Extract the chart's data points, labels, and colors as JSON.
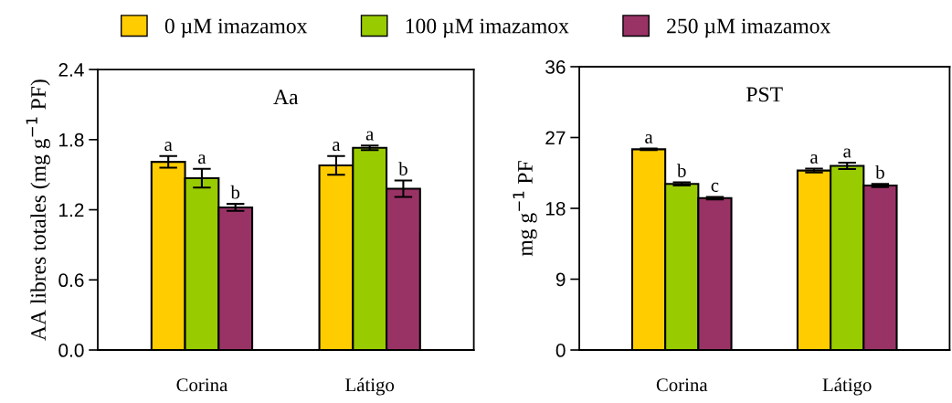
{
  "chart_data": [
    {
      "type": "bar",
      "title": "Aa",
      "ylabel": "AA libres totales (mg g$^{−1}$ PF)",
      "categories": [
        "Corina",
        "Látigo"
      ],
      "ylim": [
        0,
        2.4
      ],
      "yticks": [
        {
          "value": 0,
          "label": "0.0"
        },
        0.6,
        1.2,
        1.8,
        2.4
      ],
      "legend": "top",
      "grid": false,
      "series": [
        {
          "name": "0 µM imazamox",
          "color": "#ffcc00",
          "values": [
            1.61,
            1.58
          ],
          "errors": [
            0.05,
            0.08
          ]
        },
        {
          "name": "100 µM imazamox",
          "color": "#99cc00",
          "values": [
            1.47,
            1.73
          ],
          "errors": [
            0.08,
            0.02
          ]
        },
        {
          "name": "250 µM imazamox",
          "color": "#993366",
          "values": [
            1.22,
            1.38
          ],
          "errors": [
            0.03,
            0.07
          ]
        }
      ],
      "annotations": [
        "a",
        "a",
        "b",
        "a",
        "a",
        "b"
      ]
    },
    {
      "type": "bar",
      "title": "PST",
      "ylabel": "mg g$^{−1}$ PF",
      "categories": [
        "Corina",
        "Látigo"
      ],
      "ylim": [
        0,
        36
      ],
      "yticks": [
        0,
        9,
        18,
        27,
        36
      ],
      "grid": false,
      "series": [
        {
          "color": "#ffcc00",
          "values": [
            25.5,
            22.8
          ],
          "errors": [
            0.1,
            0.25
          ]
        },
        {
          "color": "#99cc00",
          "values": [
            21.1,
            23.4
          ],
          "errors": [
            0.2,
            0.4
          ]
        },
        {
          "color": "#993366",
          "values": [
            19.3,
            20.9
          ],
          "errors": [
            0.15,
            0.2
          ]
        }
      ],
      "annotations": [
        "a",
        "b",
        "c",
        "a",
        "a",
        "b"
      ]
    }
  ]
}
